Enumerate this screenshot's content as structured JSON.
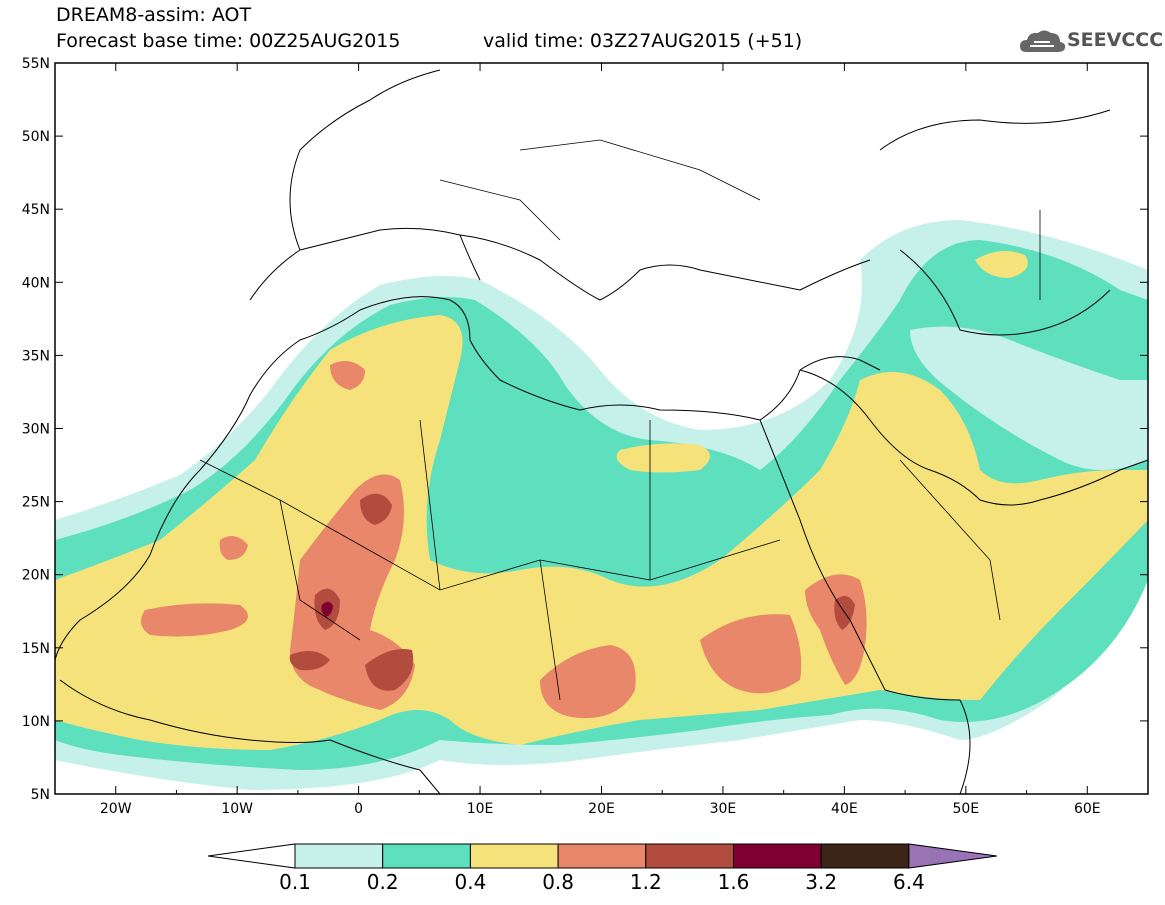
{
  "title": {
    "line1": "DREAM8-assim: AOT",
    "line2_left": "Forecast base time: 00Z25AUG2015",
    "line2_right": "valid time: 03Z27AUG2015 (+51)"
  },
  "logo": {
    "text": "SEEVCCC",
    "icon": "cloud-icon"
  },
  "map": {
    "lon_range": [
      -25,
      65
    ],
    "lat_range": [
      5,
      55
    ],
    "lat_ticks": [
      "5N",
      "10N",
      "15N",
      "20N",
      "25N",
      "30N",
      "35N",
      "40N",
      "45N",
      "50N",
      "55N"
    ],
    "lon_ticks": [
      "20W",
      "10W",
      "0",
      "10E",
      "20E",
      "30E",
      "40E",
      "50E",
      "60E"
    ]
  },
  "colorbar": {
    "labels": [
      "0.1",
      "0.2",
      "0.4",
      "0.8",
      "1.2",
      "1.6",
      "3.2",
      "6.4"
    ],
    "colors": [
      "#ffffff",
      "#c6f0ea",
      "#5ee0be",
      "#f6e27a",
      "#e8876a",
      "#b24c3f",
      "#7d0030",
      "#3b2418",
      "#9a72b6"
    ]
  }
}
